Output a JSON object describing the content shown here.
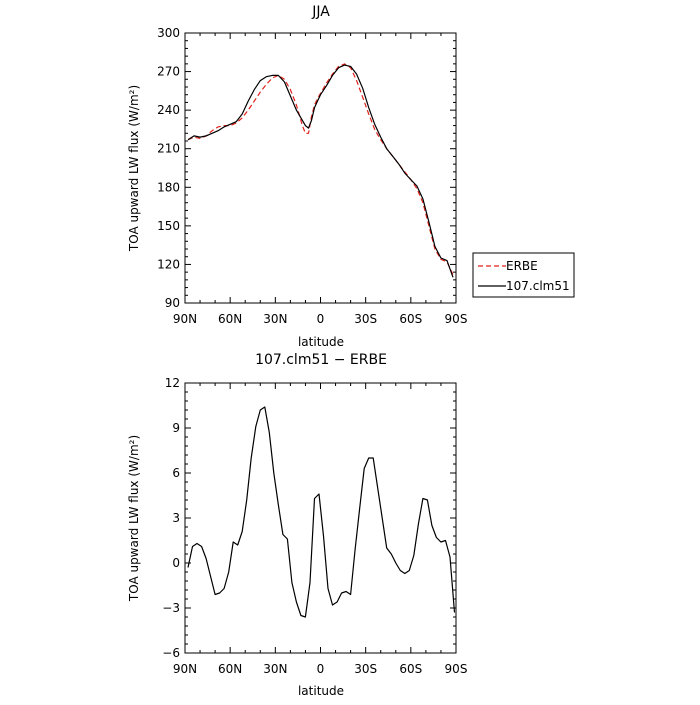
{
  "chart_data": [
    {
      "type": "line",
      "title": "JJA",
      "xlabel": "latitude",
      "ylabel": "TOA upward LW flux (W/m²)",
      "xlim": [
        90,
        -90
      ],
      "ylim": [
        90,
        300
      ],
      "x_ticks": [
        {
          "value": 90,
          "label": "90N"
        },
        {
          "value": 60,
          "label": "60N"
        },
        {
          "value": 30,
          "label": "30N"
        },
        {
          "value": 0,
          "label": "0"
        },
        {
          "value": -30,
          "label": "30S"
        },
        {
          "value": -60,
          "label": "60S"
        },
        {
          "value": -90,
          "label": "90S"
        }
      ],
      "y_ticks": [
        {
          "value": 90,
          "label": "90"
        },
        {
          "value": 120,
          "label": "120"
        },
        {
          "value": 150,
          "label": "150"
        },
        {
          "value": 180,
          "label": "180"
        },
        {
          "value": 210,
          "label": "210"
        },
        {
          "value": 240,
          "label": "240"
        },
        {
          "value": 270,
          "label": "270"
        },
        {
          "value": 300,
          "label": "300"
        }
      ],
      "legend_position": "right",
      "series": [
        {
          "name": "ERBE",
          "color": "#e0201a",
          "dash": "dashed",
          "x": [
            88,
            84,
            80,
            76,
            72,
            68,
            64,
            60,
            56,
            52,
            48,
            44,
            40,
            36,
            32,
            28,
            24,
            20,
            16,
            12,
            10,
            8,
            6,
            4,
            2,
            0,
            -4,
            -8,
            -12,
            -16,
            -20,
            -24,
            -28,
            -32,
            -36,
            -40,
            -44,
            -48,
            -52,
            -56,
            -60,
            -64,
            -68,
            -72,
            -76,
            -80,
            -84,
            -88
          ],
          "y": [
            217,
            219,
            218,
            220,
            224,
            227,
            228,
            228,
            230,
            234,
            240,
            247,
            254,
            260,
            265,
            267,
            264,
            256,
            244,
            228,
            222,
            222,
            235,
            244,
            249,
            253,
            261,
            268,
            274,
            276,
            273,
            263,
            250,
            237,
            225,
            217,
            210,
            204,
            198,
            192,
            186,
            179,
            168,
            150,
            132,
            124,
            122,
            112
          ]
        },
        {
          "name": "107.clm51",
          "color": "#000000",
          "dash": "solid",
          "x": [
            88,
            84,
            80,
            76,
            72,
            68,
            64,
            60,
            56,
            52,
            48,
            44,
            40,
            36,
            32,
            28,
            24,
            20,
            16,
            12,
            10,
            8,
            6,
            4,
            2,
            0,
            -4,
            -8,
            -12,
            -16,
            -20,
            -24,
            -28,
            -32,
            -36,
            -40,
            -44,
            -48,
            -52,
            -56,
            -60,
            -64,
            -68,
            -72,
            -76,
            -80,
            -84,
            -88
          ],
          "y": [
            217,
            220,
            219,
            220,
            222,
            224,
            227,
            229,
            231,
            237,
            247,
            256,
            263,
            266,
            267,
            267,
            262,
            251,
            240,
            232,
            228,
            226,
            232,
            242,
            247,
            252,
            259,
            267,
            273,
            275,
            274,
            268,
            257,
            242,
            229,
            219,
            210,
            204,
            198,
            191,
            186,
            181,
            171,
            153,
            134,
            125,
            123,
            110
          ]
        }
      ]
    },
    {
      "type": "line",
      "title": "107.clm51 − ERBE",
      "xlabel": "latitude",
      "ylabel": "TOA upward LW flux (W/m²)",
      "xlim": [
        90,
        -90
      ],
      "ylim": [
        -6,
        12
      ],
      "x_ticks": [
        {
          "value": 90,
          "label": "90N"
        },
        {
          "value": 60,
          "label": "60N"
        },
        {
          "value": 30,
          "label": "30N"
        },
        {
          "value": 0,
          "label": "0"
        },
        {
          "value": -30,
          "label": "30S"
        },
        {
          "value": -60,
          "label": "60S"
        },
        {
          "value": -90,
          "label": "90S"
        }
      ],
      "y_ticks": [
        {
          "value": -6,
          "label": "−6"
        },
        {
          "value": -3,
          "label": "−3"
        },
        {
          "value": 0,
          "label": "0"
        },
        {
          "value": 3,
          "label": "3"
        },
        {
          "value": 6,
          "label": "6"
        },
        {
          "value": 9,
          "label": "9"
        },
        {
          "value": 12,
          "label": "12"
        }
      ],
      "series": [
        {
          "color": "#000000",
          "dash": "solid",
          "x": [
            88,
            85,
            82,
            79,
            76,
            73,
            70,
            67,
            64,
            61,
            58,
            55,
            52,
            49,
            46,
            43,
            40,
            37,
            34,
            31,
            28,
            25,
            22,
            19,
            16,
            13,
            10,
            7,
            4,
            1,
            -2,
            -5,
            -8,
            -11,
            -14,
            -17,
            -20,
            -23,
            -26,
            -29,
            -32,
            -35,
            -38,
            -41,
            -44,
            -47,
            -50,
            -53,
            -56,
            -59,
            -62,
            -65,
            -68,
            -71,
            -74,
            -77,
            -80,
            -83,
            -86,
            -89
          ],
          "y": [
            -0.3,
            1.1,
            1.3,
            1.1,
            0.3,
            -0.9,
            -2.1,
            -2.0,
            -1.7,
            -0.6,
            1.4,
            1.2,
            2.1,
            4.2,
            7.0,
            9.1,
            10.2,
            10.4,
            8.7,
            6.0,
            3.9,
            1.9,
            1.6,
            -1.3,
            -2.6,
            -3.5,
            -3.6,
            -1.3,
            4.3,
            4.6,
            1.8,
            -1.7,
            -2.8,
            -2.6,
            -2.0,
            -1.9,
            -2.1,
            0.9,
            3.6,
            6.3,
            7.0,
            7.0,
            5.0,
            3.0,
            1.0,
            0.6,
            0.0,
            -0.5,
            -0.7,
            -0.5,
            0.5,
            2.6,
            4.3,
            4.2,
            2.5,
            1.7,
            1.4,
            1.5,
            0.4,
            -3.3
          ]
        }
      ]
    }
  ]
}
